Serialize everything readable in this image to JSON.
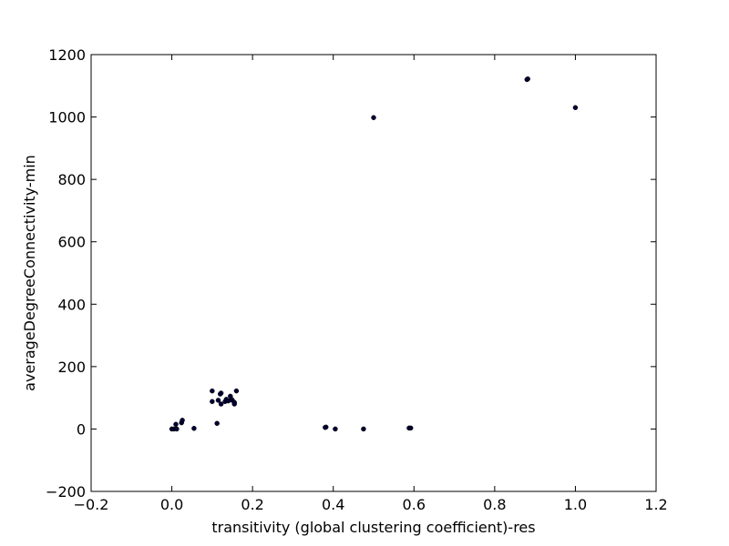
{
  "chart_data": {
    "type": "scatter",
    "title": "",
    "xlabel": "transitivity (global clustering coefficient)-res",
    "ylabel": "averageDegreeConnectivity-min",
    "xlim": [
      -0.2,
      1.2
    ],
    "ylim": [
      -200,
      1200
    ],
    "xticks": [
      -0.2,
      0.0,
      0.2,
      0.4,
      0.6,
      0.8,
      1.0,
      1.2
    ],
    "xtick_labels": [
      "−0.2",
      "0.0",
      "0.2",
      "0.4",
      "0.6",
      "0.8",
      "1.0",
      "1.2"
    ],
    "yticks": [
      -200,
      0,
      200,
      400,
      600,
      800,
      1000,
      1200
    ],
    "ytick_labels": [
      "−200",
      "0",
      "200",
      "400",
      "600",
      "800",
      "1000",
      "1200"
    ],
    "grid": false,
    "marker_color": "#000033",
    "points": [
      {
        "x": 0.0,
        "y": 0
      },
      {
        "x": 0.005,
        "y": 0
      },
      {
        "x": 0.01,
        "y": 15
      },
      {
        "x": 0.012,
        "y": 0
      },
      {
        "x": 0.024,
        "y": 20
      },
      {
        "x": 0.026,
        "y": 28
      },
      {
        "x": 0.055,
        "y": 2
      },
      {
        "x": 0.1,
        "y": 122
      },
      {
        "x": 0.1,
        "y": 88
      },
      {
        "x": 0.112,
        "y": 18
      },
      {
        "x": 0.115,
        "y": 92
      },
      {
        "x": 0.12,
        "y": 112
      },
      {
        "x": 0.122,
        "y": 115
      },
      {
        "x": 0.122,
        "y": 80
      },
      {
        "x": 0.132,
        "y": 88
      },
      {
        "x": 0.135,
        "y": 95
      },
      {
        "x": 0.14,
        "y": 90
      },
      {
        "x": 0.145,
        "y": 105
      },
      {
        "x": 0.148,
        "y": 95
      },
      {
        "x": 0.15,
        "y": 92
      },
      {
        "x": 0.155,
        "y": 85
      },
      {
        "x": 0.155,
        "y": 80
      },
      {
        "x": 0.16,
        "y": 122
      },
      {
        "x": 0.38,
        "y": 5
      },
      {
        "x": 0.382,
        "y": 6
      },
      {
        "x": 0.405,
        "y": 0
      },
      {
        "x": 0.475,
        "y": 0
      },
      {
        "x": 0.5,
        "y": 998
      },
      {
        "x": 0.588,
        "y": 3
      },
      {
        "x": 0.592,
        "y": 3
      },
      {
        "x": 0.88,
        "y": 1120
      },
      {
        "x": 0.882,
        "y": 1122
      },
      {
        "x": 1.0,
        "y": 1030
      }
    ]
  }
}
